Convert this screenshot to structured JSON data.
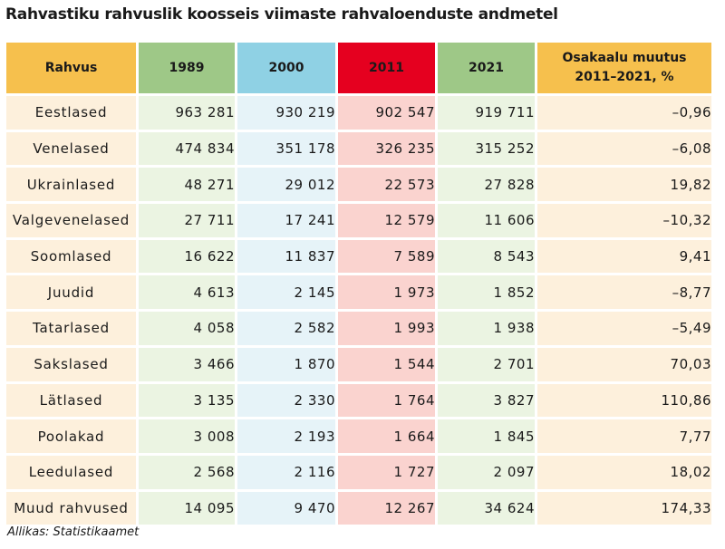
{
  "title": "Rahvastiku rahvuslik koosseis viimaste rahvaloenduste andmetel",
  "source": "Allikas: Statistikaamet",
  "colors": {
    "header_name": "#f6c04d",
    "header_1989": "#9ec887",
    "header_2000": "#8fd1e4",
    "header_2011": "#e5001f",
    "header_2021": "#9ec887",
    "header_pct": "#f6c04d"
  },
  "chart_data": {
    "type": "table",
    "title": "Rahvastiku rahvuslik koosseis viimaste rahvaloenduste andmetel",
    "columns": [
      "Rahvus",
      "1989",
      "2000",
      "2011",
      "2021",
      "Osakaalu muutus 2011–2021, %"
    ],
    "header_pct_line1": "Osakaalu muutus",
    "header_pct_line2": "2011–2021, %",
    "rows": [
      {
        "name": "Eestlased",
        "y1989": "963 281",
        "y2000": "930 219",
        "y2011": "902 547",
        "y2021": "919 711",
        "pct": "–0,96"
      },
      {
        "name": "Venelased",
        "y1989": "474 834",
        "y2000": "351 178",
        "y2011": "326 235",
        "y2021": "315 252",
        "pct": "–6,08"
      },
      {
        "name": "Ukrainlased",
        "y1989": "48 271",
        "y2000": "29 012",
        "y2011": "22 573",
        "y2021": "27 828",
        "pct": "19,82"
      },
      {
        "name": "Valgevenelased",
        "y1989": "27 711",
        "y2000": "17 241",
        "y2011": "12 579",
        "y2021": "11 606",
        "pct": "–10,32"
      },
      {
        "name": "Soomlased",
        "y1989": "16 622",
        "y2000": "11 837",
        "y2011": "7 589",
        "y2021": "8 543",
        "pct": "9,41"
      },
      {
        "name": "Juudid",
        "y1989": "4 613",
        "y2000": "2 145",
        "y2011": "1 973",
        "y2021": "1 852",
        "pct": "–8,77"
      },
      {
        "name": "Tatarlased",
        "y1989": "4 058",
        "y2000": "2 582",
        "y2011": "1 993",
        "y2021": "1 938",
        "pct": "–5,49"
      },
      {
        "name": "Sakslased",
        "y1989": "3 466",
        "y2000": "1 870",
        "y2011": "1 544",
        "y2021": "2 701",
        "pct": "70,03"
      },
      {
        "name": "Lätlased",
        "y1989": "3 135",
        "y2000": "2 330",
        "y2011": "1 764",
        "y2021": "3 827",
        "pct": "110,86"
      },
      {
        "name": "Poolakad",
        "y1989": "3 008",
        "y2000": "2 193",
        "y2011": "1 664",
        "y2021": "1 845",
        "pct": "7,77"
      },
      {
        "name": "Leedulased",
        "y1989": "2 568",
        "y2000": "2 116",
        "y2011": "1 727",
        "y2021": "2 097",
        "pct": "18,02"
      },
      {
        "name": "Muud rahvused",
        "y1989": "14 095",
        "y2000": "9 470",
        "y2011": "12 267",
        "y2021": "34 624",
        "pct": "174,33"
      }
    ]
  }
}
